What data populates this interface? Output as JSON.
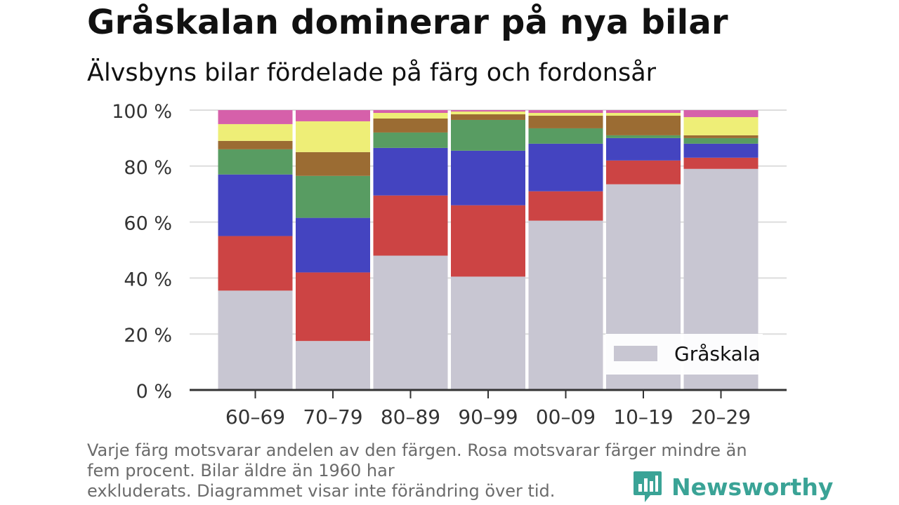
{
  "title": "Gråskalan dominerar på nya bilar",
  "subtitle": "Älvsbyns bilar fördelade på färg och fordonsår",
  "footnote": {
    "line1": "Varje färg motsvarar andelen av den färgen. Rosa motsvarar färger mindre än",
    "line2": "fem procent. Bilar äldre än 1960 har",
    "line3": "exkluderats. Diagrammet visar inte förändring över tid."
  },
  "brand": {
    "name": "Newsworthy",
    "icon": "bar-chart-bubble-icon",
    "color": "#3aa396"
  },
  "chart_data": {
    "type": "bar",
    "stacked": true,
    "categories": [
      "60–69",
      "70–79",
      "80–89",
      "90–99",
      "00–09",
      "10–19",
      "20–29"
    ],
    "series": [
      {
        "name": "Gråskala",
        "color": "#c8c6d2",
        "values": [
          35.5,
          17.5,
          48,
          40.5,
          60.5,
          73.5,
          79
        ]
      },
      {
        "color": "#cc4444",
        "values": [
          19.5,
          24.5,
          21.5,
          25.5,
          10.5,
          8.5,
          4
        ]
      },
      {
        "color": "#4444c0",
        "values": [
          22,
          19.5,
          17,
          19.5,
          17,
          8,
          5
        ]
      },
      {
        "color": "#589c62",
        "values": [
          9,
          15,
          5.5,
          11,
          5.5,
          1,
          2
        ]
      },
      {
        "color": "#9b6c33",
        "values": [
          3,
          8.5,
          5,
          2,
          4.5,
          7,
          1
        ]
      },
      {
        "color": "#eeee77",
        "values": [
          6,
          11,
          2,
          1,
          1,
          1,
          6.5
        ]
      },
      {
        "color": "#d660aa",
        "values": [
          5,
          4,
          1,
          0.5,
          1,
          1,
          2.5
        ]
      }
    ],
    "ylim": [
      0,
      100
    ],
    "y_ticks": [
      0,
      20,
      40,
      60,
      80,
      100
    ],
    "y_tick_labels": [
      "0 %",
      "20 %",
      "40 %",
      "60 %",
      "80 %",
      "100 %"
    ],
    "grid": true,
    "legend": {
      "placement": "bottom-right",
      "entries": [
        "Gråskala"
      ]
    }
  }
}
